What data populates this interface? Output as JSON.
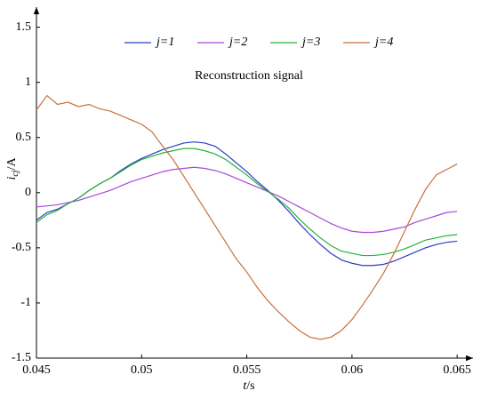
{
  "chart_data": {
    "type": "line",
    "annotation": "Reconstruction signal",
    "xlabel_symbol": "t",
    "xlabel_unit": "/s",
    "ylabel_symbol": "i",
    "ylabel_subscript": "cj",
    "ylabel_unit": "/A",
    "xlim": [
      0.045,
      0.0655
    ],
    "ylim": [
      -1.5,
      1.65
    ],
    "xticks": [
      0.045,
      0.05,
      0.055,
      0.06,
      0.065
    ],
    "yticks": [
      -1.5,
      -1,
      -0.5,
      0,
      0.5,
      1,
      1.5
    ],
    "legend": "top",
    "x": [
      0.045,
      0.0455,
      0.046,
      0.0465,
      0.047,
      0.0475,
      0.048,
      0.0485,
      0.049,
      0.0495,
      0.05,
      0.0505,
      0.051,
      0.0515,
      0.052,
      0.0525,
      0.053,
      0.0535,
      0.054,
      0.0545,
      0.055,
      0.0555,
      0.056,
      0.0565,
      0.057,
      0.0575,
      0.058,
      0.0585,
      0.059,
      0.0595,
      0.06,
      0.0605,
      0.061,
      0.0615,
      0.062,
      0.0625,
      0.063,
      0.0635,
      0.064,
      0.0645,
      0.065
    ],
    "series": [
      {
        "name": "j=1",
        "color": "#2b3fc4",
        "values": [
          -0.25,
          -0.18,
          -0.15,
          -0.1,
          -0.05,
          0.02,
          0.08,
          0.13,
          0.2,
          0.26,
          0.31,
          0.35,
          0.39,
          0.42,
          0.45,
          0.46,
          0.45,
          0.42,
          0.35,
          0.27,
          0.19,
          0.1,
          0.02,
          -0.07,
          -0.17,
          -0.28,
          -0.38,
          -0.47,
          -0.55,
          -0.61,
          -0.64,
          -0.66,
          -0.66,
          -0.65,
          -0.62,
          -0.58,
          -0.54,
          -0.5,
          -0.47,
          -0.45,
          -0.44
        ]
      },
      {
        "name": "j=2",
        "color": "#a64ad8",
        "values": [
          -0.13,
          -0.12,
          -0.11,
          -0.09,
          -0.07,
          -0.04,
          -0.01,
          0.02,
          0.06,
          0.1,
          0.13,
          0.16,
          0.19,
          0.21,
          0.22,
          0.23,
          0.22,
          0.2,
          0.17,
          0.13,
          0.09,
          0.05,
          0.01,
          -0.03,
          -0.08,
          -0.13,
          -0.18,
          -0.23,
          -0.28,
          -0.32,
          -0.35,
          -0.36,
          -0.36,
          -0.35,
          -0.33,
          -0.31,
          -0.27,
          -0.24,
          -0.21,
          -0.18,
          -0.17
        ]
      },
      {
        "name": "j=3",
        "color": "#27b33a",
        "values": [
          -0.27,
          -0.2,
          -0.16,
          -0.1,
          -0.05,
          0.02,
          0.08,
          0.13,
          0.19,
          0.25,
          0.3,
          0.33,
          0.36,
          0.38,
          0.4,
          0.4,
          0.38,
          0.35,
          0.3,
          0.23,
          0.16,
          0.08,
          0.01,
          -0.06,
          -0.14,
          -0.24,
          -0.33,
          -0.41,
          -0.48,
          -0.53,
          -0.55,
          -0.57,
          -0.57,
          -0.56,
          -0.54,
          -0.51,
          -0.47,
          -0.43,
          -0.41,
          -0.39,
          -0.38
        ]
      },
      {
        "name": "j=4",
        "color": "#c8703a",
        "values": [
          0.75,
          0.88,
          0.8,
          0.82,
          0.78,
          0.8,
          0.76,
          0.74,
          0.7,
          0.66,
          0.62,
          0.55,
          0.42,
          0.3,
          0.15,
          0.0,
          -0.15,
          -0.3,
          -0.45,
          -0.6,
          -0.72,
          -0.86,
          -0.98,
          -1.08,
          -1.17,
          -1.25,
          -1.31,
          -1.33,
          -1.31,
          -1.25,
          -1.15,
          -1.02,
          -0.88,
          -0.73,
          -0.55,
          -0.35,
          -0.15,
          0.03,
          0.16,
          0.21,
          0.26
        ]
      }
    ]
  }
}
